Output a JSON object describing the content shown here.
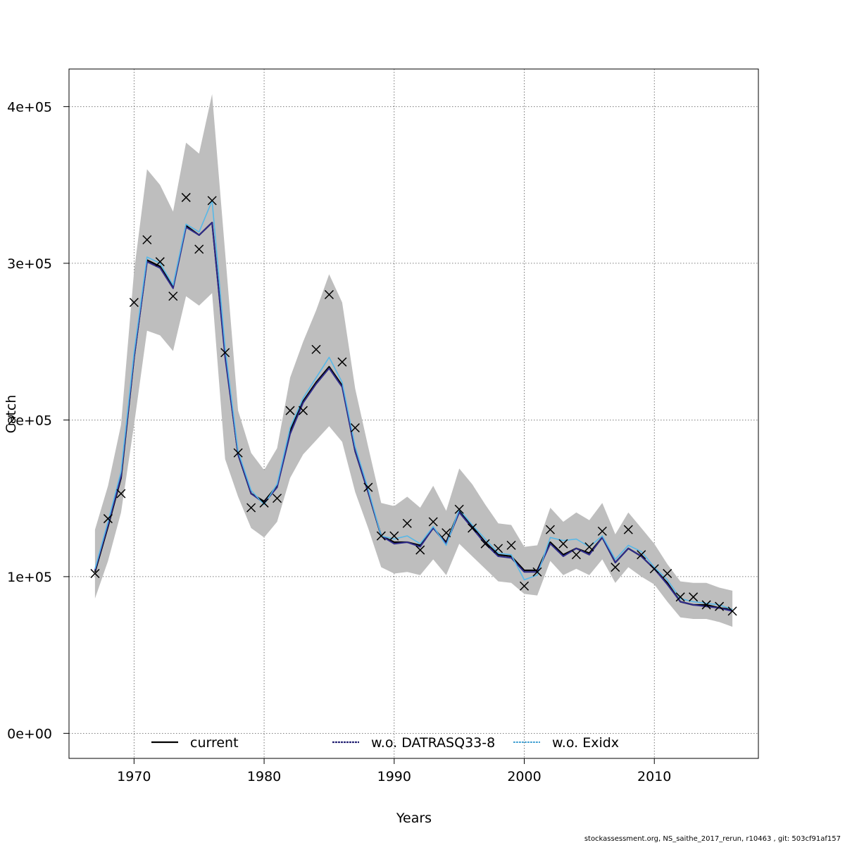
{
  "chart_data": {
    "type": "line",
    "title": "",
    "xlabel": "Years",
    "ylabel": "Catch",
    "xlim": [
      1965,
      2018
    ],
    "ylim": [
      -16000,
      424000
    ],
    "grid": true,
    "x_ticks": [
      1970,
      1980,
      1990,
      2000,
      2010
    ],
    "y_ticks": [
      0,
      100000,
      200000,
      300000,
      400000
    ],
    "y_tick_labels": [
      "0e+00",
      "1e+05",
      "2e+05",
      "3e+05",
      "4e+05"
    ],
    "legend_position": "bottom",
    "x": [
      1967,
      1968,
      1969,
      1970,
      1971,
      1972,
      1973,
      1974,
      1975,
      1976,
      1977,
      1978,
      1979,
      1980,
      1981,
      1982,
      1983,
      1984,
      1985,
      1986,
      1987,
      1988,
      1989,
      1990,
      1991,
      1992,
      1993,
      1994,
      1995,
      1996,
      1997,
      1998,
      1999,
      2000,
      2001,
      2002,
      2003,
      2004,
      2005,
      2006,
      2007,
      2008,
      2009,
      2010,
      2011,
      2012,
      2013,
      2014,
      2015,
      2016
    ],
    "observed": [
      102000,
      137000,
      153000,
      275000,
      315000,
      301000,
      279000,
      342000,
      309000,
      340000,
      243000,
      179000,
      144000,
      147000,
      150000,
      206000,
      206000,
      245000,
      280000,
      237000,
      195000,
      157000,
      126000,
      126000,
      134000,
      117000,
      135000,
      128000,
      143000,
      131000,
      121000,
      118000,
      120000,
      94000,
      103000,
      130000,
      121000,
      114000,
      119000,
      129000,
      106000,
      130000,
      114000,
      105000,
      102000,
      87000,
      87000,
      82000,
      81000,
      78000
    ],
    "ci_upper": [
      130000,
      158000,
      197000,
      295000,
      360000,
      350000,
      333000,
      377000,
      370000,
      408000,
      307000,
      206000,
      179000,
      168000,
      182000,
      227000,
      250000,
      270000,
      293000,
      275000,
      220000,
      183000,
      147000,
      145000,
      151000,
      144000,
      158000,
      142000,
      169000,
      159000,
      146000,
      134000,
      133000,
      119000,
      120000,
      144000,
      135000,
      141000,
      136000,
      147000,
      127000,
      141000,
      131000,
      121000,
      108000,
      97000,
      96000,
      96000,
      93000,
      91000
    ],
    "ci_lower": [
      86000,
      110000,
      141000,
      197000,
      257000,
      254000,
      244000,
      279000,
      273000,
      281000,
      175000,
      151000,
      131000,
      125000,
      135000,
      163000,
      178000,
      187000,
      196000,
      186000,
      154000,
      131000,
      106000,
      102000,
      103000,
      101000,
      111000,
      101000,
      121000,
      113000,
      105000,
      97000,
      96000,
      89000,
      88000,
      110000,
      101000,
      105000,
      101000,
      111000,
      96000,
      106000,
      100000,
      95000,
      84000,
      74000,
      73000,
      73000,
      71000,
      68000
    ],
    "series": [
      {
        "name": "current",
        "color": "#000000",
        "values": [
          103000,
          132000,
          163000,
          240000,
          302000,
          298000,
          285000,
          324000,
          318000,
          326000,
          242000,
          178000,
          153000,
          148000,
          158000,
          193000,
          212000,
          224000,
          234000,
          222000,
          180000,
          154000,
          126000,
          122000,
          122000,
          120000,
          131000,
          122000,
          142000,
          132000,
          122000,
          114000,
          113000,
          104000,
          104000,
          122000,
          114000,
          118000,
          115000,
          125000,
          109000,
          118000,
          113000,
          105000,
          96000,
          84000,
          82000,
          82000,
          80000,
          79000
        ]
      },
      {
        "name": "w.o. DATRASQ33-8",
        "color": "#2f2c8c",
        "values": [
          104000,
          133000,
          164000,
          240000,
          301000,
          297000,
          284000,
          323000,
          318000,
          326000,
          240000,
          178000,
          153000,
          147000,
          157000,
          191000,
          211000,
          223000,
          233000,
          221000,
          180000,
          154000,
          126000,
          121000,
          122000,
          119000,
          131000,
          121000,
          141000,
          131000,
          121000,
          113000,
          112000,
          103000,
          103000,
          121000,
          113000,
          118000,
          114000,
          125000,
          109000,
          118000,
          113000,
          105000,
          95000,
          84000,
          82000,
          81000,
          80000,
          78000
        ]
      },
      {
        "name": "w.o. Exidx",
        "color": "#57b8e8",
        "values": [
          105000,
          135000,
          167000,
          243000,
          304000,
          300000,
          286000,
          325000,
          320000,
          340000,
          246000,
          180000,
          155000,
          146000,
          159000,
          195000,
          214000,
          227000,
          240000,
          224000,
          183000,
          156000,
          126000,
          124000,
          126000,
          121000,
          132000,
          120000,
          143000,
          133000,
          124000,
          115000,
          114000,
          98000,
          101000,
          125000,
          123000,
          124000,
          119000,
          126000,
          111000,
          120000,
          116000,
          106000,
          98000,
          86000,
          84000,
          83000,
          82000,
          79000
        ]
      }
    ]
  },
  "footer": "stockassessment.org, NS_saithe_2017_rerun, r10463 , git: 503cf91af157"
}
